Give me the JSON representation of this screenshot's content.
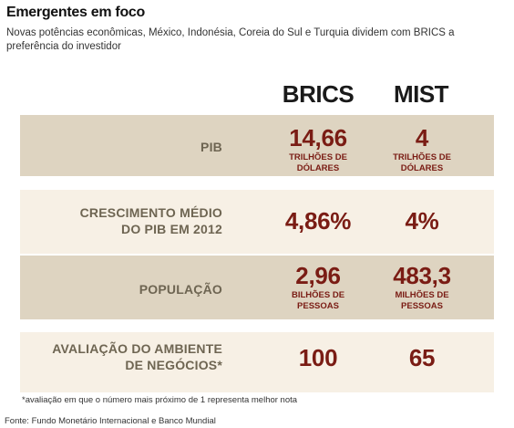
{
  "header": {
    "title": "Emergentes em foco",
    "subtitle": "Novas potências econômicas, México, Indonésia, Coreia do Sul e Turquia dividem com BRICS a preferência do investidor"
  },
  "table": {
    "columns": [
      "BRICS",
      "MIST"
    ],
    "rows": [
      {
        "label": [
          "PIB"
        ],
        "brics": {
          "value": "14,66",
          "unit": [
            "TRILHÕES DE",
            "DÓLARES"
          ]
        },
        "mist": {
          "value": "4",
          "unit": [
            "TRILHÕES DE",
            "DÓLARES"
          ]
        }
      },
      {
        "label": [
          "CRESCIMENTO MÉDIO",
          "DO PIB EM 2012"
        ],
        "brics": {
          "value": "4,86%",
          "unit": []
        },
        "mist": {
          "value": "4%",
          "unit": []
        }
      },
      {
        "label": [
          "POPULAÇÃO"
        ],
        "brics": {
          "value": "2,96",
          "unit": [
            "BILHÕES DE",
            "PESSOAS"
          ]
        },
        "mist": {
          "value": "483,3",
          "unit": [
            "MILHÕES DE",
            "PESSOAS"
          ]
        }
      },
      {
        "label": [
          "AVALIAÇÃO DO AMBIENTE",
          "DE NEGÓCIOS*"
        ],
        "brics": {
          "value": "100",
          "unit": []
        },
        "mist": {
          "value": "65",
          "unit": []
        }
      }
    ]
  },
  "footnote": "*avaliação em que o número mais próximo de 1 representa melhor nota",
  "source": "Fonte: Fundo Monetário Internacional e Banco Mundial",
  "colors": {
    "row_dark": "#ded4c1",
    "row_light": "#f7f0e5",
    "value_color": "#7a1c14",
    "label_color": "#6e6552"
  }
}
